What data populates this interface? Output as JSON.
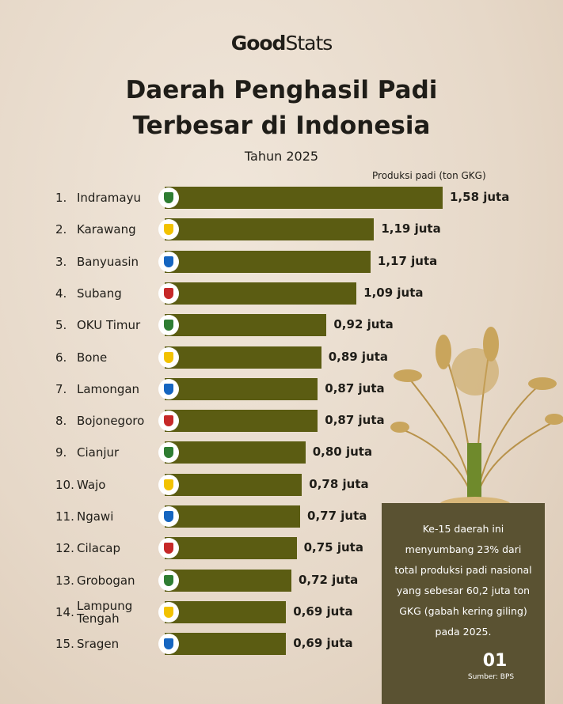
{
  "brand": {
    "part1": "Good",
    "part2": "Stats"
  },
  "chart_data": {
    "type": "bar",
    "orientation": "horizontal",
    "title": "Daerah Penghasil Padi Terbesar di Indonesia",
    "subtitle": "Tahun 2025",
    "value_axis_label": "Produksi padi (ton GKG)",
    "color": "#5b5c12",
    "ranks": [
      "1.",
      "2.",
      "3.",
      "4.",
      "5.",
      "6.",
      "7.",
      "8.",
      "9.",
      "10.",
      "11.",
      "12.",
      "13.",
      "14.",
      "15."
    ],
    "categories": [
      "Indramayu",
      "Karawang",
      "Banyuasin",
      "Subang",
      "OKU Timur",
      "Bone",
      "Lamongan",
      "Bojonegoro",
      "Cianjur",
      "Wajo",
      "Ngawi",
      "Cilacap",
      "Grobogan",
      "Lampung Tengah",
      "Sragen"
    ],
    "values": [
      1.58,
      1.19,
      1.17,
      1.09,
      0.92,
      0.89,
      0.87,
      0.87,
      0.8,
      0.78,
      0.77,
      0.75,
      0.72,
      0.69,
      0.69
    ],
    "value_labels": [
      "1,58 juta",
      "1,19 juta",
      "1,17 juta",
      "1,09 juta",
      "0,92 juta",
      "0,89 juta",
      "0,87 juta",
      "0,87 juta",
      "0,80 juta",
      "0,78 juta",
      "0,77 juta",
      "0,75 juta",
      "0,72 juta",
      "0,69 juta",
      "0,69 juta"
    ]
  },
  "note": "Ke-15 daerah ini menyumbang 23% dari total produksi padi nasional yang sebesar 60,2 juta ton GKG (gabah kering giling) pada 2025.",
  "page_number": "01",
  "source": "Sumber: BPS"
}
